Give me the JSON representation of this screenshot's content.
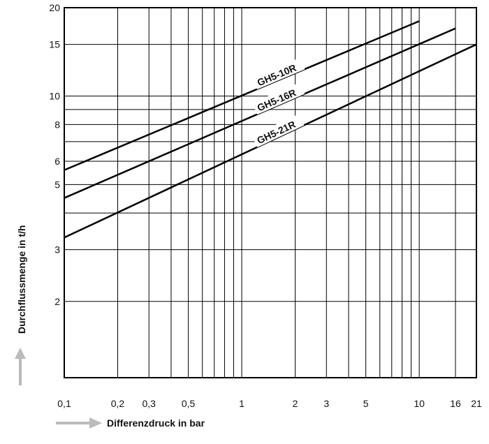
{
  "chart_data": {
    "type": "line",
    "x_scale": "log",
    "y_scale": "log",
    "xlim": [
      0.1,
      21
    ],
    "ylim": [
      1.1,
      20
    ],
    "xlabel": "Differenzdruck in bar",
    "ylabel": "Durchflussmenge in t/h",
    "x_ticks": [
      {
        "value": 0.1,
        "label": "0,1"
      },
      {
        "value": 0.2,
        "label": "0,2"
      },
      {
        "value": 0.3,
        "label": "0,3"
      },
      {
        "value": 0.5,
        "label": "0,5"
      },
      {
        "value": 1,
        "label": "1"
      },
      {
        "value": 2,
        "label": "2"
      },
      {
        "value": 3,
        "label": "3"
      },
      {
        "value": 5,
        "label": "5"
      },
      {
        "value": 10,
        "label": "10"
      },
      {
        "value": 16,
        "label": "16"
      },
      {
        "value": 21,
        "label": "21"
      }
    ],
    "y_ticks": [
      {
        "value": 2,
        "label": "2"
      },
      {
        "value": 3,
        "label": "3"
      },
      {
        "value": 5,
        "label": "5"
      },
      {
        "value": 6,
        "label": "6"
      },
      {
        "value": 8,
        "label": "8"
      },
      {
        "value": 10,
        "label": "10"
      },
      {
        "value": 15,
        "label": "15"
      },
      {
        "value": 20,
        "label": "20"
      }
    ],
    "x_grid": [
      0.2,
      0.3,
      0.4,
      0.5,
      0.6,
      0.7,
      0.8,
      0.9,
      1,
      2,
      3,
      4,
      5,
      6,
      7,
      8,
      9,
      10,
      16
    ],
    "y_grid": [
      2,
      3,
      4,
      5,
      6,
      7,
      8,
      9,
      10,
      15
    ],
    "grid": true,
    "legend": "none",
    "series": [
      {
        "name": "GH5-10R",
        "x": [
          0.1,
          10
        ],
        "y": [
          5.6,
          18
        ]
      },
      {
        "name": "GH5-16R",
        "x": [
          0.1,
          16
        ],
        "y": [
          4.5,
          17
        ]
      },
      {
        "name": "GH5-21R",
        "x": [
          0.1,
          21
        ],
        "y": [
          3.3,
          15
        ]
      }
    ],
    "colors": {
      "line": "#000000",
      "grid": "#000000",
      "arrow": "#bbbbbb"
    }
  }
}
